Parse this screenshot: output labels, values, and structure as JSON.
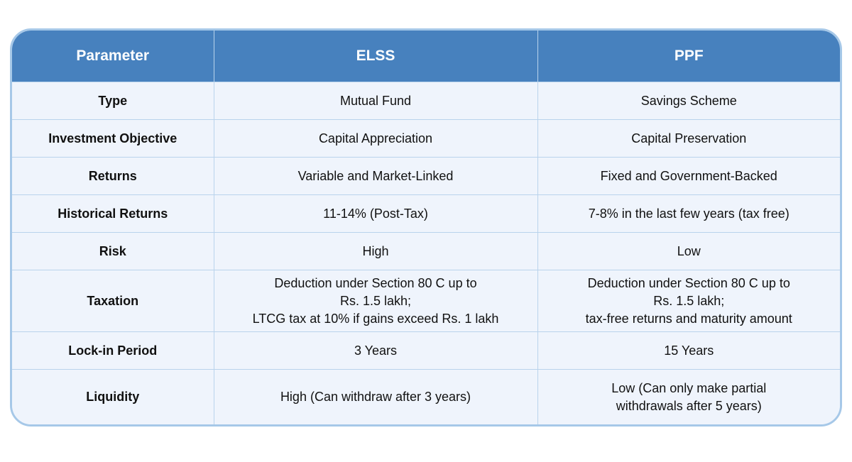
{
  "table": {
    "header": {
      "param": "Parameter",
      "elss": "ELSS",
      "ppf": "PPF"
    },
    "rows": [
      {
        "param": "Type",
        "elss": "Mutual Fund",
        "ppf": "Savings Scheme"
      },
      {
        "param": "Investment Objective",
        "elss": "Capital Appreciation",
        "ppf": "Capital Preservation"
      },
      {
        "param": "Returns",
        "elss": "Variable and Market-Linked",
        "ppf": "Fixed and Government-Backed"
      },
      {
        "param": "Historical Returns",
        "elss": "11-14% (Post-Tax)",
        "ppf": "7-8% in the last few years (tax free)"
      },
      {
        "param": "Risk",
        "elss": "High",
        "ppf": "Low"
      },
      {
        "param": "Taxation",
        "elss": "Deduction under Section 80 C up to\nRs. 1.5 lakh;\nLTCG tax at 10% if gains exceed Rs. 1 lakh",
        "ppf": "Deduction under Section 80 C up to\nRs. 1.5 lakh;\ntax-free returns and maturity amount"
      },
      {
        "param": "Lock-in Period",
        "elss": "3 Years",
        "ppf": "15 Years"
      },
      {
        "param": "Liquidity",
        "elss": "High (Can withdraw after 3 years)",
        "ppf": "Low (Can only make partial\nwithdrawals after 5 years)"
      }
    ]
  },
  "colors": {
    "header_bg": "#4781BE",
    "header_text": "#FFFFFF",
    "row_bg": "#EFF4FC",
    "cell_border": "#B9D3EC",
    "outer_border": "#A6C8E8",
    "body_text": "#111111"
  }
}
